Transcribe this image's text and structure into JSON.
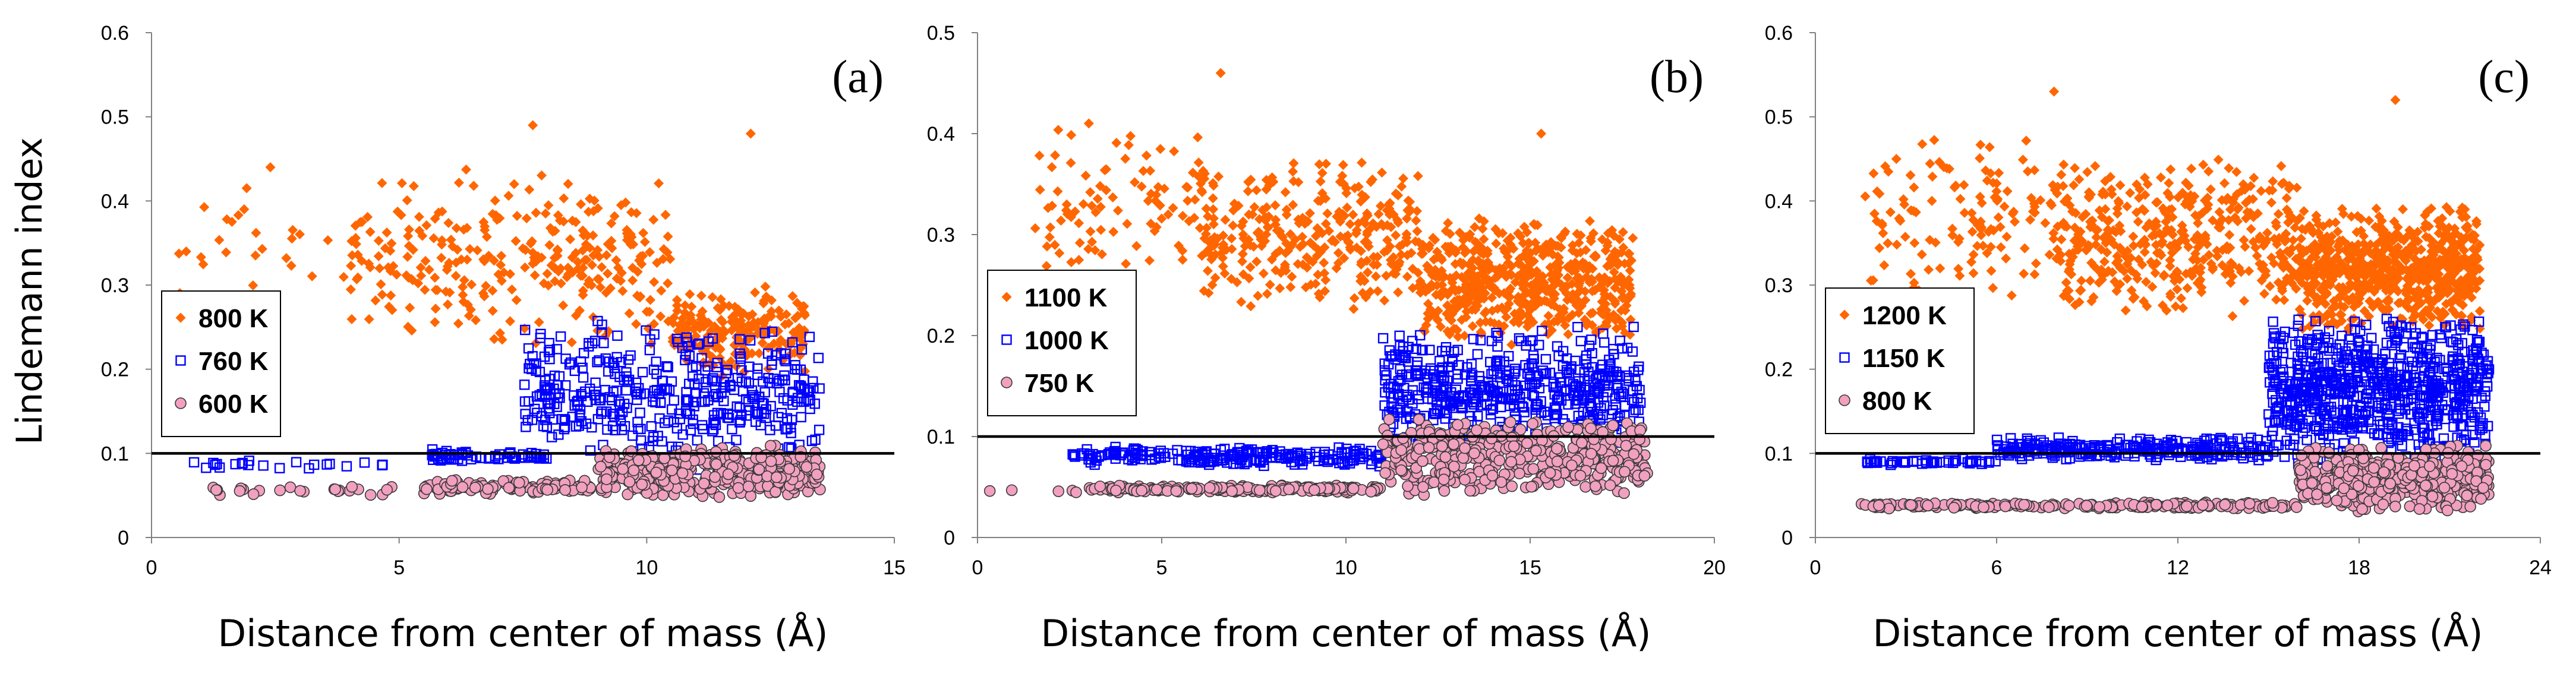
{
  "chart_data": [
    {
      "type": "scatter",
      "panel_label": "(a)",
      "xlabel": "Distance from center of mass  (Å)",
      "ylabel": "Lindemann index",
      "xlim": [
        0,
        15
      ],
      "ylim": [
        0,
        0.6
      ],
      "xticks": [
        0,
        5,
        10,
        15
      ],
      "yticks": [
        0,
        0.1,
        0.2,
        0.3,
        0.4,
        0.5,
        0.6
      ],
      "ytick_labels": [
        "0",
        "0.1",
        "0.2",
        "0.3",
        "0.4",
        "0.5",
        "0.6"
      ],
      "threshold": 0.1,
      "legend_position": "center-left",
      "series": [
        {
          "name": "800 K",
          "marker": "diamond",
          "color": "#FF6600",
          "clusters": [
            {
              "x": [
                0.5,
                4.0
              ],
              "y": [
                0.24,
                0.42
              ],
              "n": 26
            },
            {
              "x": [
                4.0,
                10.5
              ],
              "y": [
                0.22,
                0.44
              ],
              "n": 300
            },
            {
              "x": [
                10.5,
                13.2
              ],
              "y": [
                0.19,
                0.3
              ],
              "n": 220
            }
          ],
          "points": [
            {
              "x": 0.7,
              "y": 0.34
            },
            {
              "x": 2.4,
              "y": 0.44
            },
            {
              "x": 7.7,
              "y": 0.49
            },
            {
              "x": 12.1,
              "y": 0.48
            }
          ]
        },
        {
          "name": "760 K",
          "marker": "square",
          "color": "#0000FF",
          "clusters": [
            {
              "x": [
                0.8,
                5.0
              ],
              "y": [
                0.08,
                0.092
              ],
              "n": 22
            },
            {
              "x": [
                5.5,
                8.0
              ],
              "y": [
                0.09,
                0.105
              ],
              "n": 60
            },
            {
              "x": [
                7.5,
                13.5
              ],
              "y": [
                0.08,
                0.26
              ],
              "n": 420
            }
          ]
        },
        {
          "name": "600 K",
          "marker": "circle",
          "color": "#F2A0C0",
          "clusters": [
            {
              "x": [
                1.0,
                5.0
              ],
              "y": [
                0.05,
                0.062
              ],
              "n": 24
            },
            {
              "x": [
                5.5,
                9.0
              ],
              "y": [
                0.05,
                0.07
              ],
              "n": 110
            },
            {
              "x": [
                9.0,
                13.5
              ],
              "y": [
                0.045,
                0.11
              ],
              "n": 420
            }
          ]
        }
      ]
    },
    {
      "type": "scatter",
      "panel_label": "(b)",
      "xlabel": "Distance from center of mass  (Å)",
      "ylabel": "",
      "xlim": [
        0,
        20
      ],
      "ylim": [
        0,
        0.5
      ],
      "xticks": [
        0,
        5,
        10,
        15,
        20
      ],
      "yticks": [
        0,
        0.1,
        0.2,
        0.3,
        0.4,
        0.5
      ],
      "ytick_labels": [
        "0",
        "0.1",
        "0.2",
        "0.3",
        "0.4",
        "0.5"
      ],
      "threshold": 0.1,
      "legend_position": "center-left",
      "series": [
        {
          "name": "1100 K",
          "marker": "diamond",
          "color": "#FF6600",
          "clusters": [
            {
              "x": [
                1.5,
                6.0
              ],
              "y": [
                0.24,
                0.42
              ],
              "n": 90
            },
            {
              "x": [
                6.0,
                12.0
              ],
              "y": [
                0.22,
                0.38
              ],
              "n": 320
            },
            {
              "x": [
                12.0,
                17.8
              ],
              "y": [
                0.19,
                0.32
              ],
              "n": 560
            }
          ],
          "points": [
            {
              "x": 6.6,
              "y": 0.46
            },
            {
              "x": 15.3,
              "y": 0.4
            }
          ]
        },
        {
          "name": "1000 K",
          "marker": "square",
          "color": "#0000FF",
          "clusters": [
            {
              "x": [
                2.5,
                11.0
              ],
              "y": [
                0.07,
                0.09
              ],
              "n": 220
            },
            {
              "x": [
                11.0,
                18.0
              ],
              "y": [
                0.08,
                0.21
              ],
              "n": 520
            }
          ]
        },
        {
          "name": "750 K",
          "marker": "circle",
          "color": "#F2A0C0",
          "clusters": [
            {
              "x": [
                0.1,
                3.0
              ],
              "y": [
                0.044,
                0.05
              ],
              "n": 5
            },
            {
              "x": [
                3.0,
                11.0
              ],
              "y": [
                0.044,
                0.052
              ],
              "n": 200
            },
            {
              "x": [
                11.0,
                18.2
              ],
              "y": [
                0.04,
                0.12
              ],
              "n": 420
            }
          ]
        }
      ]
    },
    {
      "type": "scatter",
      "panel_label": "(c)",
      "xlabel": "Distance from center of mass  (Å)",
      "ylabel": "",
      "xlim": [
        0,
        24
      ],
      "ylim": [
        0,
        0.6
      ],
      "xticks": [
        0,
        6,
        12,
        18,
        24
      ],
      "yticks": [
        0,
        0.1,
        0.2,
        0.3,
        0.4,
        0.5,
        0.6
      ],
      "ytick_labels": [
        "0",
        "0.1",
        "0.2",
        "0.3",
        "0.4",
        "0.5",
        "0.6"
      ],
      "threshold": 0.1,
      "legend_position": "center-left",
      "series": [
        {
          "name": "1200 K",
          "marker": "diamond",
          "color": "#FF6600",
          "clusters": [
            {
              "x": [
                1.5,
                8.0
              ],
              "y": [
                0.28,
                0.48
              ],
              "n": 130
            },
            {
              "x": [
                8.0,
                16.0
              ],
              "y": [
                0.26,
                0.46
              ],
              "n": 420
            },
            {
              "x": [
                16.0,
                22.0
              ],
              "y": [
                0.24,
                0.4
              ],
              "n": 700
            }
          ],
          "points": [
            {
              "x": 7.9,
              "y": 0.53
            },
            {
              "x": 19.2,
              "y": 0.52
            }
          ]
        },
        {
          "name": "1150 K",
          "marker": "square",
          "color": "#0000FF",
          "clusters": [
            {
              "x": [
                1.5,
                6.0
              ],
              "y": [
                0.086,
                0.094
              ],
              "n": 50
            },
            {
              "x": [
                6.0,
                15.0
              ],
              "y": [
                0.09,
                0.12
              ],
              "n": 260
            },
            {
              "x": [
                15.0,
                22.3
              ],
              "y": [
                0.08,
                0.27
              ],
              "n": 760
            }
          ]
        },
        {
          "name": "800 K",
          "marker": "circle",
          "color": "#F2A0C0",
          "clusters": [
            {
              "x": [
                1.5,
                16.0
              ],
              "y": [
                0.034,
                0.042
              ],
              "n": 200
            },
            {
              "x": [
                16.0,
                22.3
              ],
              "y": [
                0.03,
                0.11
              ],
              "n": 520
            }
          ]
        }
      ]
    }
  ]
}
